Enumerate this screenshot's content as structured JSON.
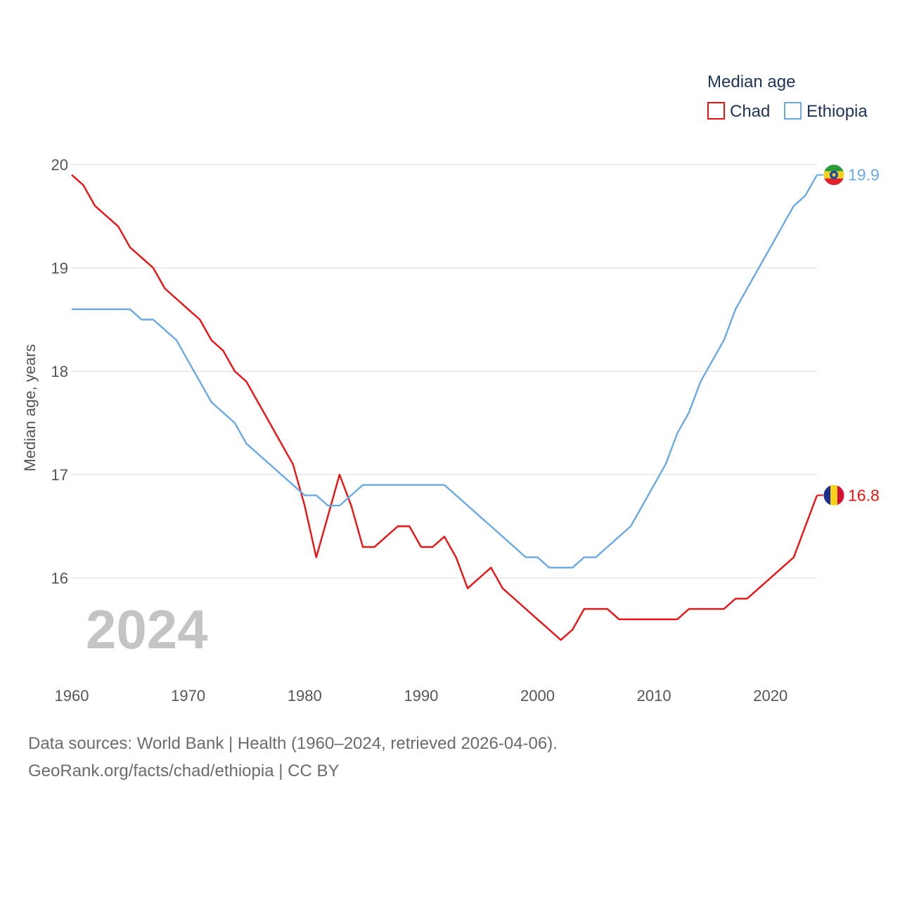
{
  "colors": {
    "chad": "#ee1111",
    "ethiopia": "#6aaae4",
    "grid": "#e6e6e6",
    "text": "#555555",
    "legend_text": "#1f3557",
    "watermark": "#c4c4c4"
  },
  "chart_data": {
    "type": "line",
    "title": "",
    "xlabel": "",
    "ylabel": "Median age, years",
    "xlim": [
      1960,
      2024
    ],
    "ylim": [
      15.0,
      20.2
    ],
    "y_ticks": [
      16,
      17,
      18,
      19,
      20
    ],
    "x_ticks": [
      1960,
      1970,
      1980,
      1990,
      2000,
      2010,
      2020
    ],
    "grid": true,
    "legend": {
      "title": "Median age",
      "position": "top-right"
    },
    "year_label": "2024",
    "x": [
      1960,
      1961,
      1962,
      1963,
      1964,
      1965,
      1966,
      1967,
      1968,
      1969,
      1970,
      1971,
      1972,
      1973,
      1974,
      1975,
      1976,
      1977,
      1978,
      1979,
      1980,
      1981,
      1982,
      1983,
      1984,
      1985,
      1986,
      1987,
      1988,
      1989,
      1990,
      1991,
      1992,
      1993,
      1994,
      1995,
      1996,
      1997,
      1998,
      1999,
      2000,
      2001,
      2002,
      2003,
      2004,
      2005,
      2006,
      2007,
      2008,
      2009,
      2010,
      2011,
      2012,
      2013,
      2014,
      2015,
      2016,
      2017,
      2018,
      2019,
      2020,
      2021,
      2022,
      2023,
      2024
    ],
    "series": [
      {
        "name": "Chad",
        "color": "#ee1111",
        "end_label": "16.8",
        "values": [
          19.9,
          19.8,
          19.6,
          19.5,
          19.4,
          19.2,
          19.1,
          19.0,
          18.8,
          18.7,
          18.6,
          18.5,
          18.3,
          18.2,
          18.0,
          17.9,
          17.7,
          17.5,
          17.3,
          17.1,
          16.7,
          16.2,
          16.6,
          17.0,
          16.7,
          16.3,
          16.3,
          16.4,
          16.5,
          16.5,
          16.3,
          16.3,
          16.4,
          16.2,
          15.9,
          16.0,
          16.1,
          15.9,
          15.8,
          15.7,
          15.6,
          15.5,
          15.4,
          15.5,
          15.7,
          15.7,
          15.7,
          15.6,
          15.6,
          15.6,
          15.6,
          15.6,
          15.6,
          15.7,
          15.7,
          15.7,
          15.7,
          15.8,
          15.8,
          15.9,
          16.0,
          16.1,
          16.2,
          16.5,
          16.8
        ]
      },
      {
        "name": "Ethiopia",
        "color": "#6aaae4",
        "end_label": "19.9",
        "values": [
          18.6,
          18.6,
          18.6,
          18.6,
          18.6,
          18.6,
          18.5,
          18.5,
          18.4,
          18.3,
          18.1,
          17.9,
          17.7,
          17.6,
          17.5,
          17.3,
          17.2,
          17.1,
          17.0,
          16.9,
          16.8,
          16.8,
          16.7,
          16.7,
          16.8,
          16.9,
          16.9,
          16.9,
          16.9,
          16.9,
          16.9,
          16.9,
          16.9,
          16.8,
          16.7,
          16.6,
          16.5,
          16.4,
          16.3,
          16.2,
          16.2,
          16.1,
          16.1,
          16.1,
          16.2,
          16.2,
          16.3,
          16.4,
          16.5,
          16.7,
          16.9,
          17.1,
          17.4,
          17.6,
          17.9,
          18.1,
          18.3,
          18.6,
          18.8,
          19.0,
          19.2,
          19.4,
          19.6,
          19.7,
          19.9
        ]
      }
    ]
  },
  "footer": {
    "line1": "Data sources: World Bank | Health (1960–2024, retrieved 2026-04-06).",
    "line2": "GeoRank.org/facts/chad/ethiopia | CC BY"
  }
}
